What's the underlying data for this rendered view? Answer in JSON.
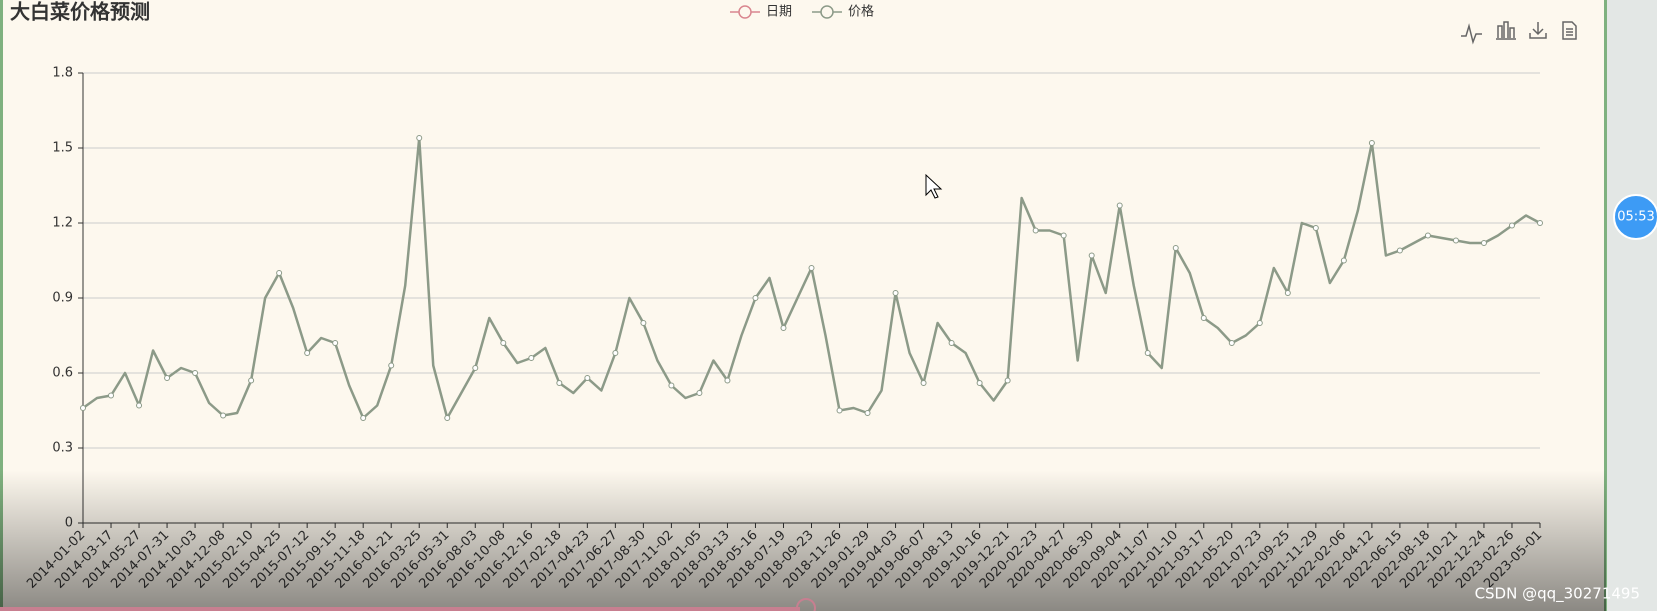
{
  "chart_data": {
    "type": "line",
    "title": "大白菜价格预测",
    "legend": [
      {
        "name": "日期",
        "color": "#d9868f"
      },
      {
        "name": "价格",
        "color": "#8c9a88"
      }
    ],
    "categories": [
      "2014-01-02",
      null,
      "2014-03-17",
      null,
      "2014-05-27",
      null,
      "2014-07-31",
      null,
      "2014-10-03",
      null,
      "2014-12-08",
      null,
      "2015-02-10",
      null,
      "2015-04-25",
      null,
      "2015-07-12",
      null,
      "2015-09-15",
      null,
      "2015-11-18",
      null,
      "2016-01-21",
      null,
      "2016-03-25",
      null,
      "2016-05-31",
      null,
      "2016-08-03",
      null,
      "2016-10-08",
      null,
      "2016-12-16",
      null,
      "2017-02-18",
      null,
      "2017-04-23",
      null,
      "2017-06-27",
      null,
      "2017-08-30",
      null,
      "2017-11-02",
      null,
      "2018-01-05",
      null,
      "2018-03-13",
      null,
      "2018-05-16",
      null,
      "2018-07-19",
      null,
      "2018-09-23",
      null,
      "2018-11-26",
      null,
      "2019-01-29",
      null,
      "2019-04-03",
      null,
      "2019-06-07",
      null,
      "2019-08-13",
      null,
      "2019-10-16",
      null,
      "2019-12-21",
      null,
      "2020-02-23",
      null,
      "2020-04-27",
      null,
      "2020-06-30",
      null,
      "2020-09-04",
      null,
      "2020-11-07",
      null,
      "2021-01-10",
      null,
      "2021-03-17",
      null,
      "2021-05-20",
      null,
      "2021-07-23",
      null,
      "2021-09-25",
      null,
      "2021-11-29",
      null,
      "2022-02-06",
      null,
      "2022-04-12",
      null,
      "2022-06-15",
      null,
      "2022-08-18",
      null,
      "2022-10-21",
      null,
      "2022-12-24",
      null,
      "2023-02-26",
      null,
      "2023-05-01"
    ],
    "series": [
      {
        "color": "#8c9a88",
        "values": [
          0.46,
          0.5,
          0.51,
          0.6,
          0.47,
          0.69,
          0.58,
          0.62,
          0.6,
          0.48,
          0.43,
          0.44,
          0.57,
          0.9,
          1.0,
          0.86,
          0.68,
          0.74,
          0.72,
          0.55,
          0.42,
          0.47,
          0.63,
          0.95,
          1.54,
          0.63,
          0.42,
          0.52,
          0.62,
          0.82,
          0.72,
          0.64,
          0.66,
          0.7,
          0.56,
          0.52,
          0.58,
          0.53,
          0.68,
          0.9,
          0.8,
          0.65,
          0.55,
          0.5,
          0.52,
          0.65,
          0.57,
          0.75,
          0.9,
          0.98,
          0.78,
          0.9,
          1.02,
          0.75,
          0.45,
          0.46,
          0.44,
          0.53,
          0.92,
          0.68,
          0.56,
          0.8,
          0.72,
          0.68,
          0.56,
          0.49,
          0.57,
          1.3,
          1.17,
          1.17,
          1.15,
          0.65,
          1.07,
          0.92,
          1.27,
          0.95,
          0.68,
          0.62,
          1.1,
          1.0,
          0.82,
          0.78,
          0.72,
          0.75,
          0.8,
          1.02,
          0.92,
          1.2,
          1.18,
          0.96,
          1.05,
          1.25,
          1.52,
          1.07,
          1.09,
          1.12,
          1.15,
          1.14,
          1.13,
          1.12,
          1.12,
          1.15,
          1.19,
          1.23,
          1.2
        ]
      }
    ],
    "ylim": [
      0,
      1.8
    ],
    "yticks": [
      0,
      0.3,
      0.6,
      0.9,
      1.2,
      1.5,
      1.8
    ],
    "grid": true
  },
  "overlay": {
    "timer": "05:53",
    "watermark": "CSDN @qq_30271495"
  }
}
